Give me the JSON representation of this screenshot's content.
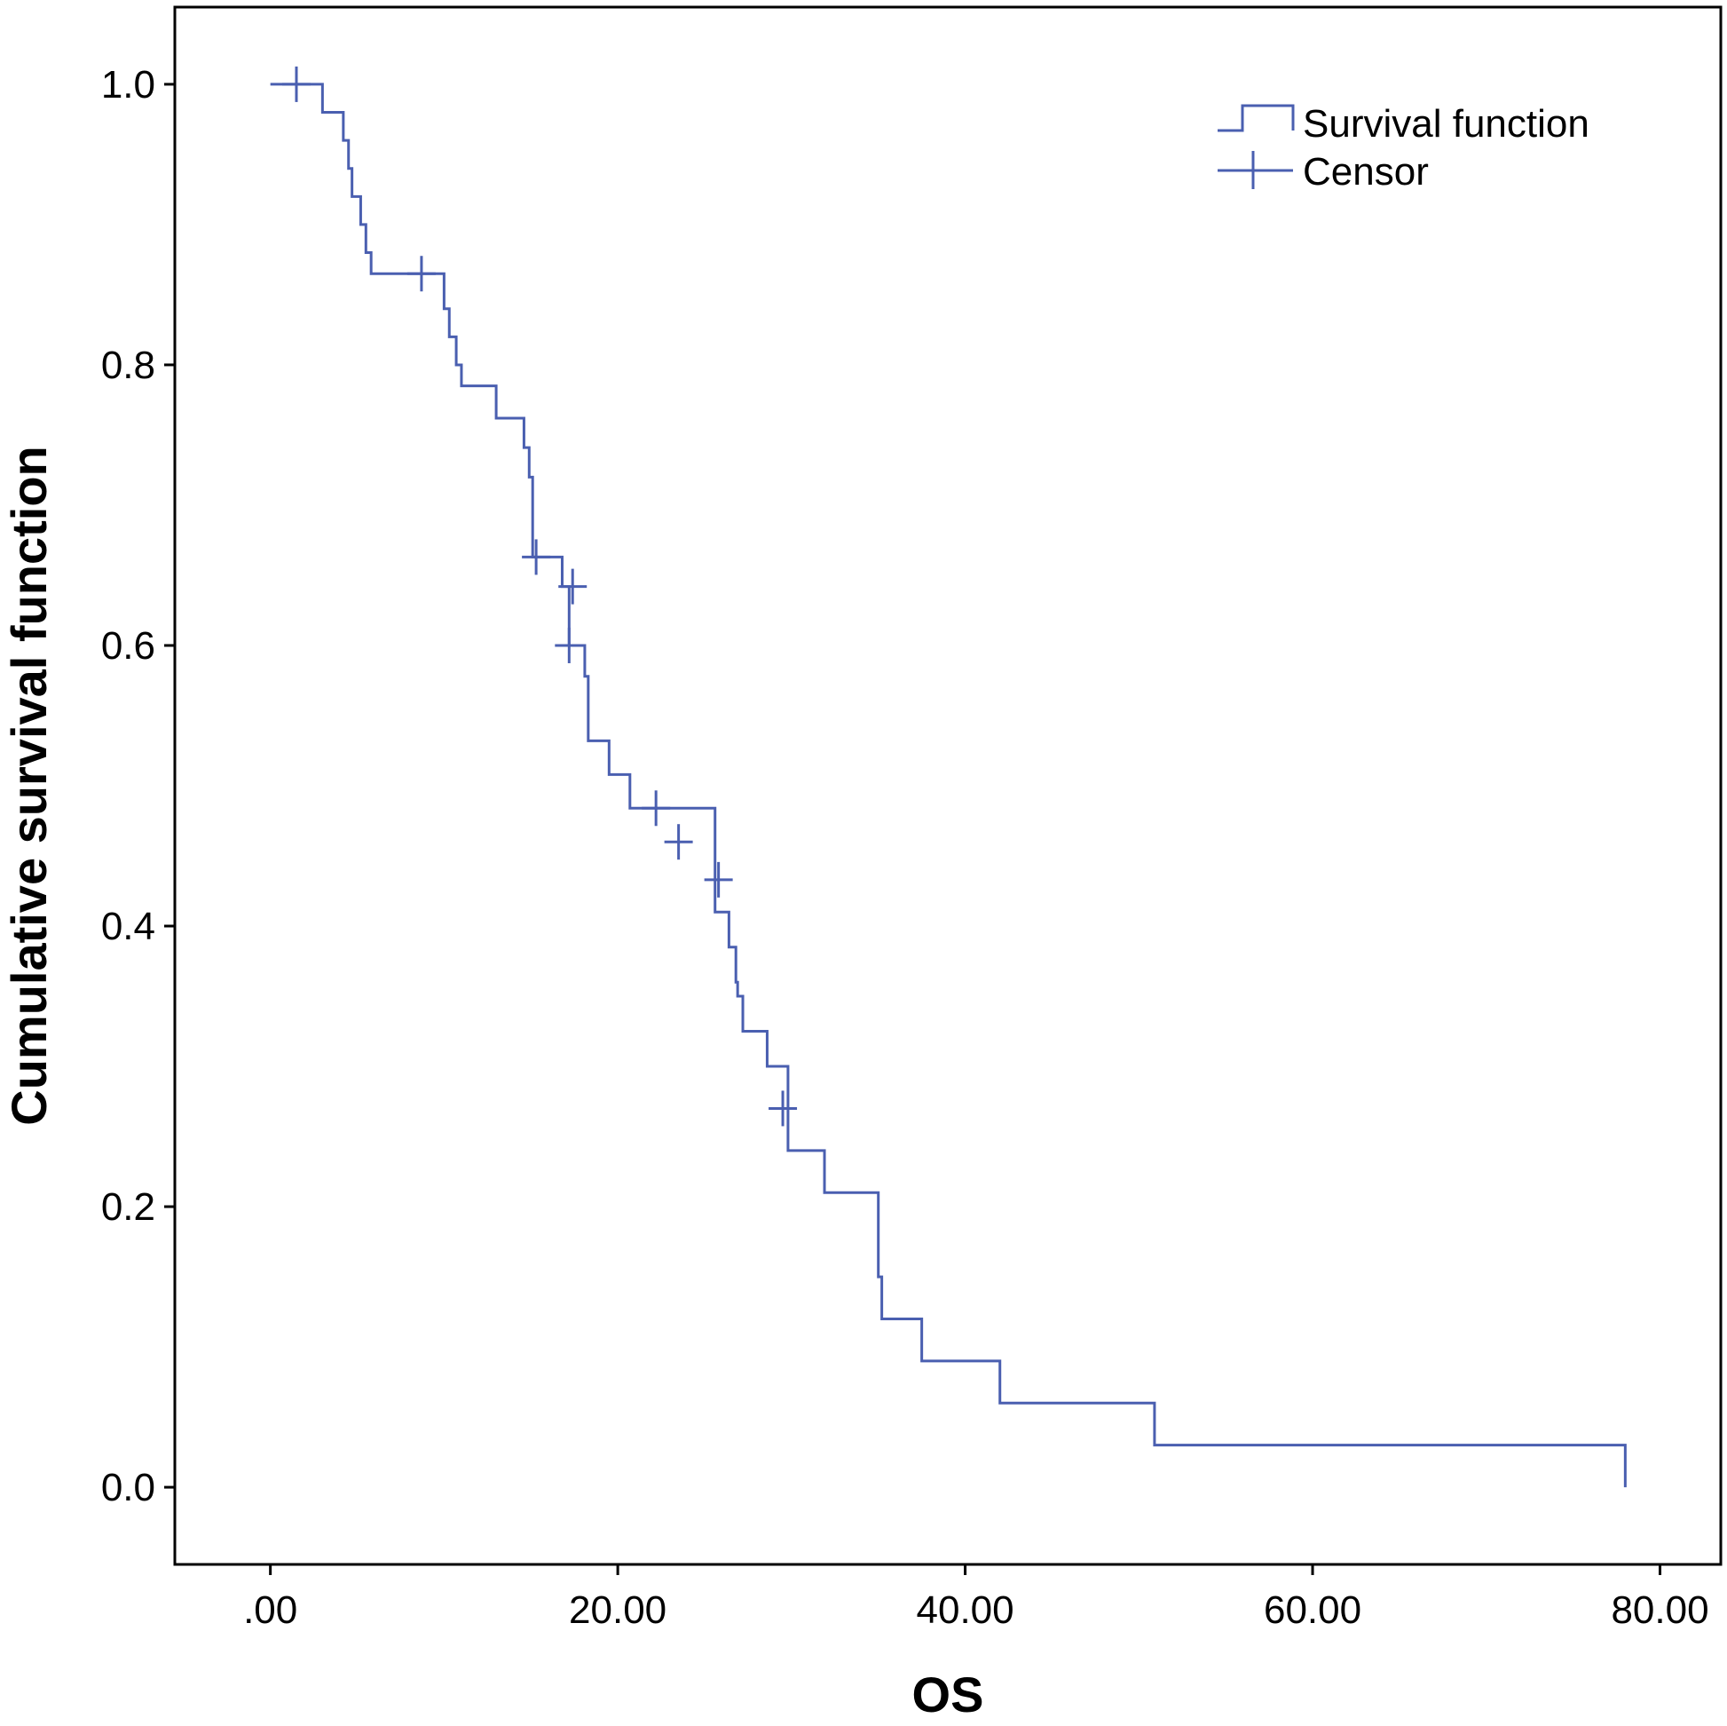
{
  "chart_data": {
    "type": "line",
    "title": "",
    "xlabel": "OS",
    "ylabel": "Cumulative survival function",
    "xlim": [
      -5.5,
      83.5
    ],
    "ylim": [
      -0.055,
      1.055
    ],
    "x_ticks": [
      0,
      20,
      40,
      60,
      80
    ],
    "x_tick_labels": [
      ".00",
      "20.00",
      "40.00",
      "60.00",
      "80.00"
    ],
    "y_ticks": [
      0,
      0.2,
      0.4,
      0.6,
      0.8,
      1.0
    ],
    "y_tick_labels": [
      "0.0",
      "0.2",
      "0.4",
      "0.6",
      "0.8",
      "1.0"
    ],
    "grid": false,
    "legend_position": "top-right",
    "color": "#4a5fb0",
    "series": [
      {
        "name": "Survival function",
        "style": "step",
        "x": [
          0,
          3.0,
          4.2,
          4.5,
          4.7,
          5.2,
          5.5,
          5.8,
          10.0,
          10.3,
          10.7,
          11.0,
          13.0,
          14.6,
          14.9,
          15.1,
          16.8,
          17.2,
          18.1,
          18.3,
          19.5,
          20.7,
          25.6,
          26.4,
          26.8,
          26.9,
          27.2,
          28.6,
          29.8,
          31.9,
          35.0,
          35.2,
          37.5,
          42.0,
          50.9,
          78.0
        ],
        "y": [
          1.0,
          0.98,
          0.96,
          0.94,
          0.92,
          0.9,
          0.88,
          0.865,
          0.84,
          0.82,
          0.8,
          0.785,
          0.762,
          0.741,
          0.72,
          0.663,
          0.642,
          0.6,
          0.578,
          0.532,
          0.508,
          0.484,
          0.41,
          0.385,
          0.36,
          0.35,
          0.325,
          0.3,
          0.24,
          0.21,
          0.15,
          0.12,
          0.09,
          0.06,
          0.03,
          0.0
        ]
      },
      {
        "name": "Censor",
        "style": "marker",
        "x": [
          1.5,
          8.7,
          15.3,
          17.4,
          17.2,
          22.2,
          23.5,
          25.8,
          29.5
        ],
        "y": [
          1.0,
          0.865,
          0.663,
          0.642,
          0.6,
          0.484,
          0.46,
          0.433,
          0.27
        ]
      }
    ]
  }
}
